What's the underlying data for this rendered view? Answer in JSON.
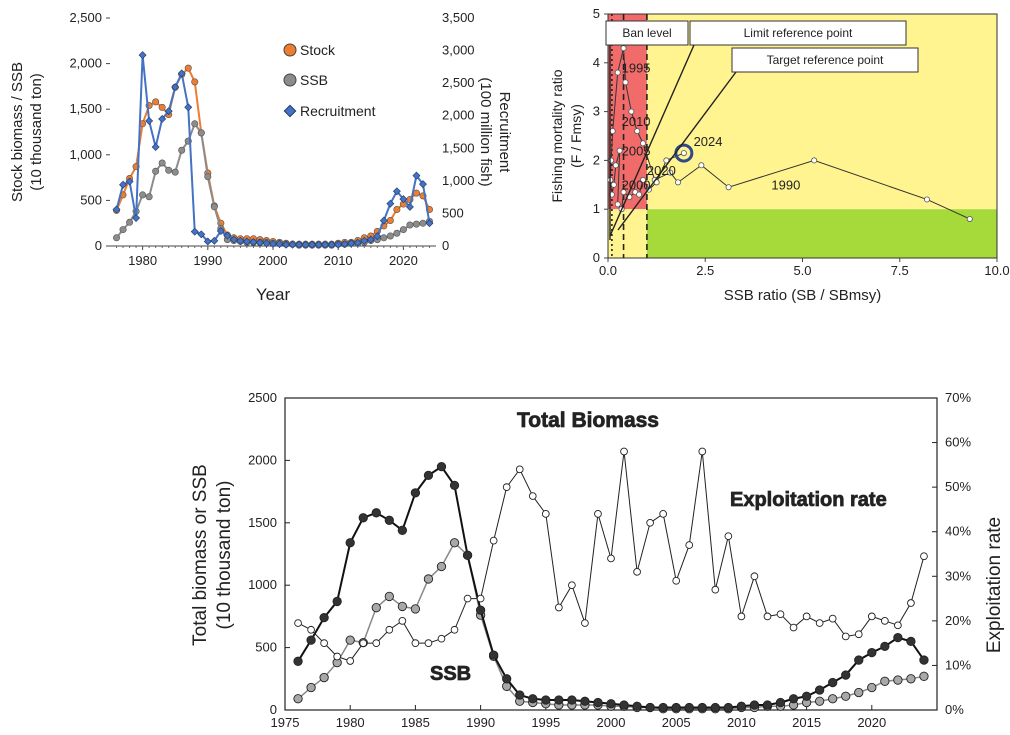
{
  "chart_data": [
    {
      "type": "line",
      "xlabel": "Year",
      "ylabel": "Stock biomass / SSB\n(10 thousand ton)",
      "y2label": "Recruitment\n(100 million fish)",
      "xlim": [
        1975,
        2025
      ],
      "ylim": [
        0,
        2500
      ],
      "y2lim": [
        0,
        3500
      ],
      "xticks": [
        "1980",
        "1990",
        "2000",
        "2010",
        "2020"
      ],
      "yticks": [
        "0",
        "500",
        "1,000",
        "1,500",
        "2,000",
        "2,500"
      ],
      "y2ticks": [
        "0",
        "500",
        "1,000",
        "1,500",
        "2,000",
        "2,500",
        "3,000",
        "3,500"
      ],
      "legend_position": "top-right",
      "series": [
        {
          "name": "Stock",
          "axis": "left",
          "color": "#ed7d31",
          "marker": "circle",
          "x": [
            1976,
            1977,
            1978,
            1979,
            1980,
            1981,
            1982,
            1983,
            1984,
            1985,
            1986,
            1987,
            1988,
            1989,
            1990,
            1991,
            1992,
            1993,
            1994,
            1995,
            1996,
            1997,
            1998,
            1999,
            2000,
            2001,
            2002,
            2003,
            2004,
            2005,
            2006,
            2007,
            2008,
            2009,
            2010,
            2011,
            2012,
            2013,
            2014,
            2015,
            2016,
            2017,
            2018,
            2019,
            2020,
            2021,
            2022,
            2023,
            2024
          ],
          "values": [
            390,
            560,
            740,
            870,
            1340,
            1540,
            1580,
            1520,
            1440,
            1740,
            1880,
            1950,
            1800,
            1240,
            800,
            440,
            250,
            120,
            90,
            80,
            80,
            80,
            70,
            60,
            50,
            40,
            30,
            20,
            20,
            20,
            20,
            20,
            20,
            20,
            30,
            40,
            40,
            60,
            90,
            110,
            160,
            220,
            280,
            400,
            460,
            510,
            580,
            550,
            400
          ]
        },
        {
          "name": "SSB",
          "axis": "left",
          "color": "#8c8c8c",
          "marker": "circle",
          "x": [
            1976,
            1977,
            1978,
            1979,
            1980,
            1981,
            1982,
            1983,
            1984,
            1985,
            1986,
            1987,
            1988,
            1989,
            1990,
            1991,
            1992,
            1993,
            1994,
            1995,
            1996,
            1997,
            1998,
            1999,
            2000,
            2001,
            2002,
            2003,
            2004,
            2005,
            2006,
            2007,
            2008,
            2009,
            2010,
            2011,
            2012,
            2013,
            2014,
            2015,
            2016,
            2017,
            2018,
            2019,
            2020,
            2021,
            2022,
            2023,
            2024
          ],
          "values": [
            90,
            180,
            260,
            380,
            560,
            540,
            820,
            910,
            830,
            810,
            1050,
            1150,
            1340,
            1240,
            760,
            430,
            190,
            70,
            60,
            50,
            40,
            40,
            40,
            40,
            30,
            30,
            20,
            20,
            10,
            10,
            10,
            10,
            10,
            10,
            20,
            20,
            30,
            30,
            40,
            60,
            70,
            90,
            110,
            140,
            180,
            230,
            240,
            250,
            270
          ]
        },
        {
          "name": "Recruitment",
          "axis": "right",
          "color": "#4472c4",
          "marker": "diamond",
          "x": [
            1976,
            1977,
            1978,
            1979,
            1980,
            1981,
            1982,
            1983,
            1984,
            1985,
            1986,
            1987,
            1988,
            1989,
            1990,
            1991,
            1992,
            1993,
            1994,
            1995,
            1996,
            1997,
            1998,
            1999,
            2000,
            2001,
            2002,
            2003,
            2004,
            2005,
            2006,
            2007,
            2008,
            2009,
            2010,
            2011,
            2012,
            2013,
            2014,
            2015,
            2016,
            2017,
            2018,
            2019,
            2020,
            2021,
            2022,
            2023,
            2024
          ],
          "values": [
            560,
            940,
            990,
            430,
            2930,
            1920,
            1520,
            1950,
            2070,
            2440,
            2650,
            2130,
            220,
            180,
            70,
            80,
            230,
            160,
            100,
            80,
            70,
            60,
            50,
            40,
            30,
            30,
            20,
            20,
            20,
            20,
            20,
            20,
            20,
            20,
            20,
            30,
            40,
            50,
            80,
            100,
            150,
            390,
            650,
            840,
            720,
            600,
            1080,
            950,
            350
          ]
        }
      ]
    },
    {
      "type": "scatter",
      "xlabel": "SSB ratio (SB / SBmsy)",
      "ylabel": "Fishing mortality ratio\n(F / Fmsy)",
      "xlim": [
        0,
        10
      ],
      "ylim": [
        0,
        5
      ],
      "xticks": [
        "0.0",
        "2.5",
        "5.0",
        "7.5",
        "10.0"
      ],
      "yticks": [
        "0",
        "1",
        "2",
        "3",
        "4",
        "5"
      ],
      "zones": [
        {
          "name": "red",
          "color": "#f26b6b",
          "x": [
            0,
            1
          ],
          "y": [
            1,
            5
          ]
        },
        {
          "name": "yellow",
          "color": "#fff48f",
          "x": [
            1,
            10
          ],
          "y": [
            1,
            5
          ]
        },
        {
          "name": "yellow-lower",
          "color": "#fff48f",
          "x": [
            0,
            1
          ],
          "y": [
            0,
            1
          ]
        },
        {
          "name": "green",
          "color": "#a6d93a",
          "x": [
            1,
            10
          ],
          "y": [
            0,
            1
          ]
        }
      ],
      "reference_lines": {
        "ban_level": 0.1,
        "limit": 0.4,
        "target": 1.0
      },
      "callouts": [
        "Ban level",
        "Limit reference point",
        "Target reference point"
      ],
      "year_labels": [
        {
          "text": "1995",
          "x": 0.35,
          "y": 3.8
        },
        {
          "text": "2010",
          "x": 0.35,
          "y": 2.7
        },
        {
          "text": "2005",
          "x": 0.35,
          "y": 2.1
        },
        {
          "text": "2020",
          "x": 1.0,
          "y": 1.7
        },
        {
          "text": "2000",
          "x": 0.35,
          "y": 1.4
        },
        {
          "text": "2024",
          "x": 2.2,
          "y": 2.3
        },
        {
          "text": "1990",
          "x": 4.2,
          "y": 1.4
        }
      ],
      "highlight": {
        "label": "2024",
        "x": 1.95,
        "y": 2.15
      },
      "points": [
        [
          9.3,
          0.8
        ],
        [
          8.2,
          1.2
        ],
        [
          5.3,
          2.0
        ],
        [
          3.1,
          1.45
        ],
        [
          2.4,
          1.9
        ],
        [
          1.8,
          1.55
        ],
        [
          1.6,
          1.75
        ],
        [
          1.2,
          1.6
        ],
        [
          0.9,
          2.35
        ],
        [
          0.75,
          2.6
        ],
        [
          0.6,
          3.0
        ],
        [
          0.45,
          3.6
        ],
        [
          0.4,
          4.3
        ],
        [
          0.25,
          3.8
        ],
        [
          0.12,
          2.6
        ],
        [
          0.08,
          2.0
        ],
        [
          0.06,
          1.6
        ],
        [
          0.1,
          1.3
        ],
        [
          0.15,
          1.5
        ],
        [
          0.2,
          1.9
        ],
        [
          0.3,
          2.2
        ],
        [
          0.25,
          1.1
        ],
        [
          0.35,
          1.0
        ],
        [
          0.4,
          1.35
        ],
        [
          0.55,
          1.25
        ],
        [
          0.7,
          1.35
        ],
        [
          0.8,
          1.3
        ],
        [
          0.9,
          1.6
        ],
        [
          1.05,
          1.4
        ],
        [
          1.25,
          1.55
        ],
        [
          1.5,
          2.0
        ],
        [
          1.95,
          2.15
        ]
      ]
    },
    {
      "type": "line",
      "title": "Total Biomass",
      "xlabel": "",
      "ylabel": "Total biomass or SSB\n(10 thousand ton)",
      "y2label": "Exploitation rate",
      "xlim": [
        1975,
        2025
      ],
      "ylim": [
        0,
        2500
      ],
      "y2lim": [
        0,
        70
      ],
      "xticks": [
        "1975",
        "1980",
        "1985",
        "1990",
        "1995",
        "2000",
        "2005",
        "2010",
        "2015",
        "2020"
      ],
      "yticks": [
        "0",
        "500",
        "1000",
        "1500",
        "2000",
        "2500"
      ],
      "y2ticks": [
        "0%",
        "10%",
        "20%",
        "30%",
        "40%",
        "50%",
        "60%",
        "70%"
      ],
      "annotations": [
        "Exploitation rate",
        "SSB"
      ],
      "series": [
        {
          "name": "Total Biomass",
          "axis": "left",
          "color": "#222222",
          "marker": "circle",
          "x": [
            1976,
            1977,
            1978,
            1979,
            1980,
            1981,
            1982,
            1983,
            1984,
            1985,
            1986,
            1987,
            1988,
            1989,
            1990,
            1991,
            1992,
            1993,
            1994,
            1995,
            1996,
            1997,
            1998,
            1999,
            2000,
            2001,
            2002,
            2003,
            2004,
            2005,
            2006,
            2007,
            2008,
            2009,
            2010,
            2011,
            2012,
            2013,
            2014,
            2015,
            2016,
            2017,
            2018,
            2019,
            2020,
            2021,
            2022,
            2023,
            2024
          ],
          "values": [
            390,
            560,
            740,
            870,
            1340,
            1540,
            1580,
            1520,
            1440,
            1740,
            1880,
            1950,
            1800,
            1240,
            800,
            440,
            250,
            120,
            90,
            80,
            80,
            80,
            70,
            60,
            50,
            40,
            30,
            20,
            20,
            20,
            20,
            20,
            20,
            20,
            30,
            40,
            40,
            60,
            90,
            110,
            160,
            220,
            280,
            400,
            460,
            510,
            580,
            550,
            400
          ]
        },
        {
          "name": "SSB",
          "axis": "left",
          "color": "#999999",
          "marker": "circle",
          "x": [
            1976,
            1977,
            1978,
            1979,
            1980,
            1981,
            1982,
            1983,
            1984,
            1985,
            1986,
            1987,
            1988,
            1989,
            1990,
            1991,
            1992,
            1993,
            1994,
            1995,
            1996,
            1997,
            1998,
            1999,
            2000,
            2001,
            2002,
            2003,
            2004,
            2005,
            2006,
            2007,
            2008,
            2009,
            2010,
            2011,
            2012,
            2013,
            2014,
            2015,
            2016,
            2017,
            2018,
            2019,
            2020,
            2021,
            2022,
            2023,
            2024
          ],
          "values": [
            90,
            180,
            260,
            380,
            560,
            540,
            820,
            910,
            830,
            810,
            1050,
            1150,
            1340,
            1240,
            760,
            430,
            190,
            70,
            60,
            50,
            40,
            40,
            40,
            40,
            30,
            30,
            20,
            20,
            10,
            10,
            10,
            10,
            10,
            10,
            20,
            20,
            30,
            30,
            40,
            60,
            70,
            90,
            110,
            140,
            180,
            230,
            240,
            250,
            270
          ]
        },
        {
          "name": "Exploitation rate",
          "axis": "right",
          "color": "#222222",
          "marker": "circle-open",
          "x": [
            1976,
            1977,
            1978,
            1979,
            1980,
            1981,
            1982,
            1983,
            1984,
            1985,
            1986,
            1987,
            1988,
            1989,
            1990,
            1991,
            1992,
            1993,
            1994,
            1995,
            1996,
            1997,
            1998,
            1999,
            2000,
            2001,
            2002,
            2003,
            2004,
            2005,
            2006,
            2007,
            2008,
            2009,
            2010,
            2011,
            2012,
            2013,
            2014,
            2015,
            2016,
            2017,
            2018,
            2019,
            2020,
            2021,
            2022,
            2023,
            2024
          ],
          "values": [
            19.5,
            18,
            15,
            12,
            11,
            15,
            15,
            18,
            20,
            15,
            15,
            16,
            18,
            25,
            25,
            38,
            50,
            54,
            48,
            44,
            23,
            28,
            19.5,
            44,
            34,
            58,
            31,
            42,
            44,
            29,
            37,
            58,
            27,
            39,
            21,
            30,
            21,
            21.5,
            18.5,
            21,
            19.5,
            20.5,
            16.5,
            17,
            21,
            20,
            19,
            24,
            34.5
          ]
        }
      ]
    }
  ]
}
